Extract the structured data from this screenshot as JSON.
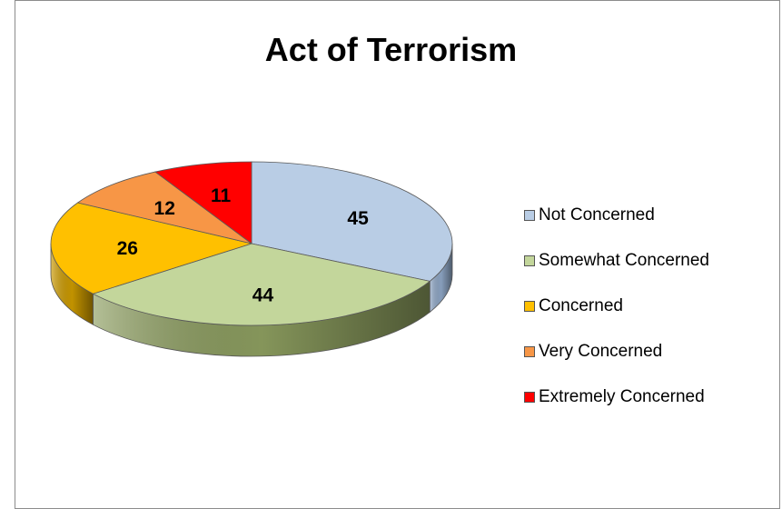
{
  "chart_data": {
    "type": "pie",
    "title": "Act of Terrorism",
    "categories": [
      "Not Concerned",
      "Somewhat Concerned",
      "Concerned",
      "Very Concerned",
      "Extremely Concerned"
    ],
    "values": [
      45,
      44,
      26,
      12,
      11
    ],
    "colors": [
      "#b9cde5",
      "#c3d69b",
      "#ffc000",
      "#f79646",
      "#ff0000"
    ],
    "side_colors": [
      "#8ea6c5",
      "#8c9d5f",
      "#cc9a00",
      "#c46f2f",
      "#c00000"
    ],
    "legend_position": "right",
    "data_labels": [
      "45",
      "44",
      "26",
      "12",
      "11"
    ]
  }
}
